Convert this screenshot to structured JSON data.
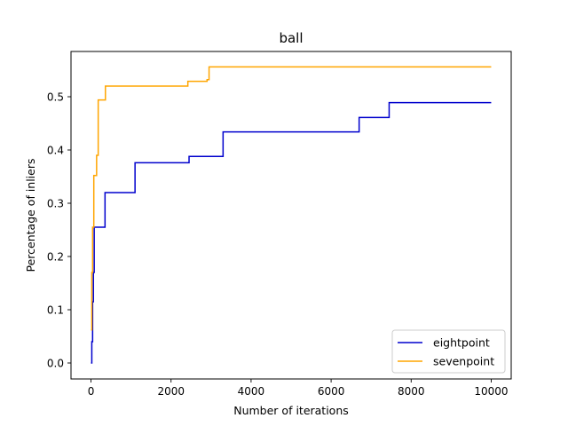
{
  "chart_data": {
    "type": "line",
    "title": "ball",
    "xlabel": "Number of iterations",
    "ylabel": "Percentage of inliers",
    "xlim": [
      -500,
      10500
    ],
    "ylim": [
      -0.03,
      0.585
    ],
    "x_ticks": [
      0,
      2000,
      4000,
      6000,
      8000,
      10000
    ],
    "y_ticks": [
      0.0,
      0.1,
      0.2,
      0.3,
      0.4,
      0.5
    ],
    "x_tick_labels": [
      "0",
      "2000",
      "4000",
      "6000",
      "8000",
      "10000"
    ],
    "y_tick_labels": [
      "0.0",
      "0.1",
      "0.2",
      "0.3",
      "0.4",
      "0.5"
    ],
    "grid": false,
    "legend_position": "lower-right",
    "step_style": "post",
    "series": [
      {
        "name": "eightpoint",
        "color": "#0000cd",
        "points": [
          [
            0,
            0.0
          ],
          [
            20,
            0.04
          ],
          [
            40,
            0.115
          ],
          [
            60,
            0.17
          ],
          [
            80,
            0.255
          ],
          [
            350,
            0.32
          ],
          [
            1100,
            0.376
          ],
          [
            2450,
            0.388
          ],
          [
            3300,
            0.434
          ],
          [
            6700,
            0.461
          ],
          [
            7450,
            0.489
          ],
          [
            10000,
            0.489
          ]
        ]
      },
      {
        "name": "sevenpoint",
        "color": "#ffa500",
        "points": [
          [
            0,
            0.062
          ],
          [
            20,
            0.17
          ],
          [
            40,
            0.255
          ],
          [
            70,
            0.352
          ],
          [
            140,
            0.39
          ],
          [
            180,
            0.494
          ],
          [
            360,
            0.52
          ],
          [
            2420,
            0.529
          ],
          [
            2900,
            0.532
          ],
          [
            2950,
            0.556
          ],
          [
            10000,
            0.556
          ]
        ]
      }
    ]
  }
}
